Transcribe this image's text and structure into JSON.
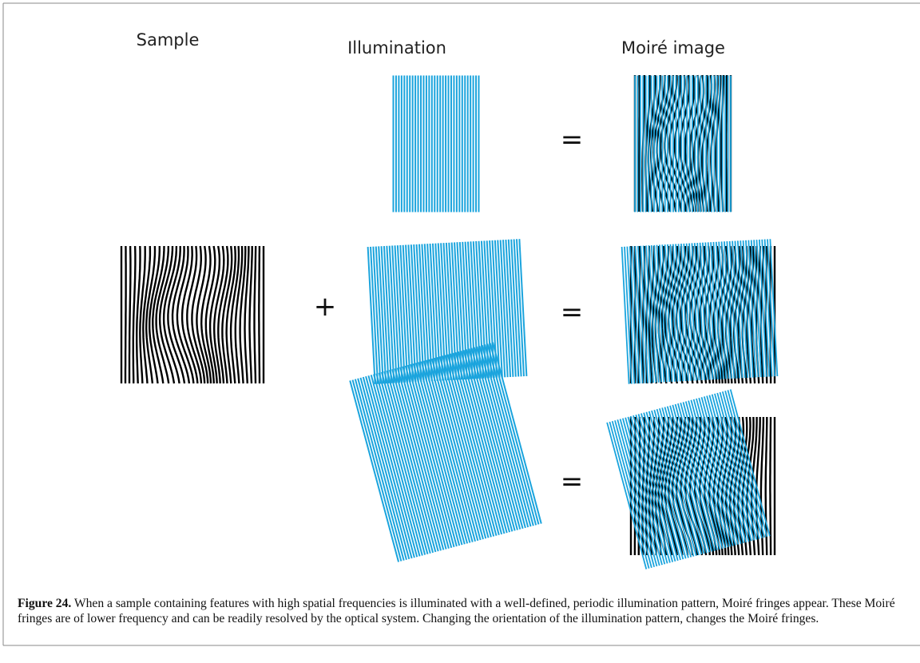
{
  "headings": {
    "sample": "Sample",
    "illumination": "Illumination",
    "moire": "Moiré image"
  },
  "symbols": {
    "plus": "+",
    "equals_top": "=",
    "equals_middle": "=",
    "equals_bottom": "="
  },
  "caption": {
    "label": "Figure 24.",
    "text": "When a sample containing features with high spatial frequencies is illuminated with a well-defined, periodic illumination pattern, Moiré fringes appear. These Moiré fringes are of lower frequency and can be readily resolved by the optical system. Changing the orientation of the illumination pattern, changes the Moiré fringes."
  }
}
